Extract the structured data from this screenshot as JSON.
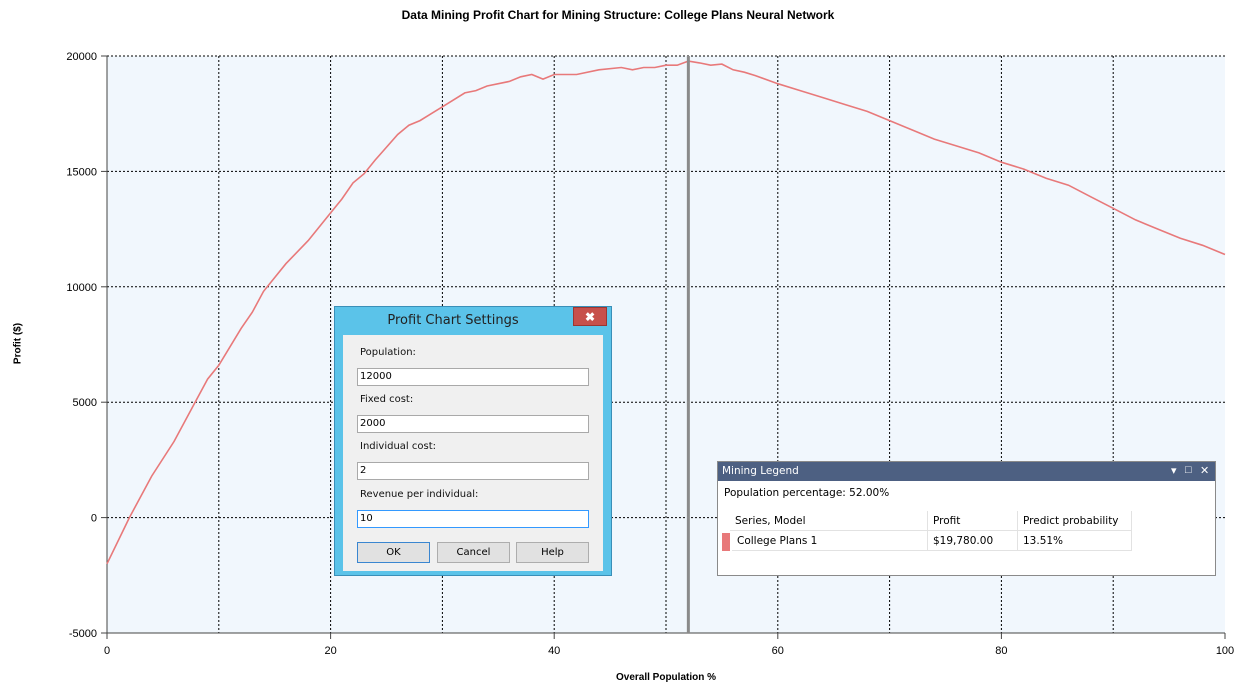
{
  "chart_data": {
    "type": "line",
    "title": "Data Mining Profit Chart for Mining Structure: College Plans Neural Network",
    "xlabel": "Overall Population %",
    "ylabel": "Profit ($)",
    "xlim": [
      0,
      100
    ],
    "ylim": [
      -5000,
      20000
    ],
    "x_ticks": [
      0,
      20,
      40,
      60,
      80,
      100
    ],
    "y_ticks": [
      -5000,
      0,
      5000,
      10000,
      15000,
      20000
    ],
    "grid": true,
    "cursor_x": 52,
    "series": [
      {
        "name": "College Plans 1",
        "color": "#e8797a",
        "x": [
          0,
          2,
          4,
          6,
          8,
          9,
          10,
          12,
          13,
          14,
          16,
          18,
          20,
          21,
          22,
          23,
          24,
          26,
          27,
          28,
          29,
          30,
          32,
          33,
          34,
          36,
          37,
          38,
          39,
          40,
          42,
          44,
          46,
          47,
          48,
          49,
          50,
          51,
          52,
          53,
          54,
          55,
          56,
          57,
          58,
          60,
          62,
          64,
          66,
          68,
          70,
          72,
          74,
          76,
          78,
          80,
          82,
          84,
          86,
          88,
          90,
          92,
          94,
          96,
          98,
          100
        ],
        "y": [
          -2000,
          0,
          1800,
          3300,
          5100,
          6000,
          6600,
          8200,
          8900,
          9800,
          11000,
          12000,
          13200,
          13800,
          14500,
          14900,
          15500,
          16600,
          17000,
          17200,
          17500,
          17800,
          18400,
          18500,
          18700,
          18900,
          19100,
          19200,
          19000,
          19200,
          19200,
          19400,
          19500,
          19400,
          19500,
          19500,
          19600,
          19600,
          19780,
          19700,
          19600,
          19650,
          19400,
          19300,
          19150,
          18800,
          18500,
          18200,
          17900,
          17600,
          17200,
          16800,
          16400,
          16100,
          15800,
          15400,
          15100,
          14700,
          14400,
          13900,
          13400,
          12900,
          12500,
          12100,
          11800,
          11400
        ]
      }
    ]
  },
  "dialog": {
    "title": "Profit Chart Settings",
    "close_glyph": "✖",
    "fields": [
      {
        "label": "Population:",
        "value": "12000"
      },
      {
        "label": "Fixed cost:",
        "value": "2000"
      },
      {
        "label": "Individual cost:",
        "value": "2"
      },
      {
        "label": "Revenue per individual:",
        "value": "10"
      }
    ],
    "buttons": {
      "ok": "OK",
      "cancel": "Cancel",
      "help": "Help"
    }
  },
  "legend": {
    "title": "Mining Legend",
    "pin_glyph": "▾",
    "restore_glyph": "□",
    "close_glyph": "✕",
    "population_percentage": "Population percentage: 52.00%",
    "columns": [
      "Series, Model",
      "Profit",
      "Predict probability"
    ],
    "rows": [
      {
        "series": "College Plans 1",
        "profit": "$19,780.00",
        "probability": "13.51%",
        "color": "#e8797a"
      }
    ]
  }
}
